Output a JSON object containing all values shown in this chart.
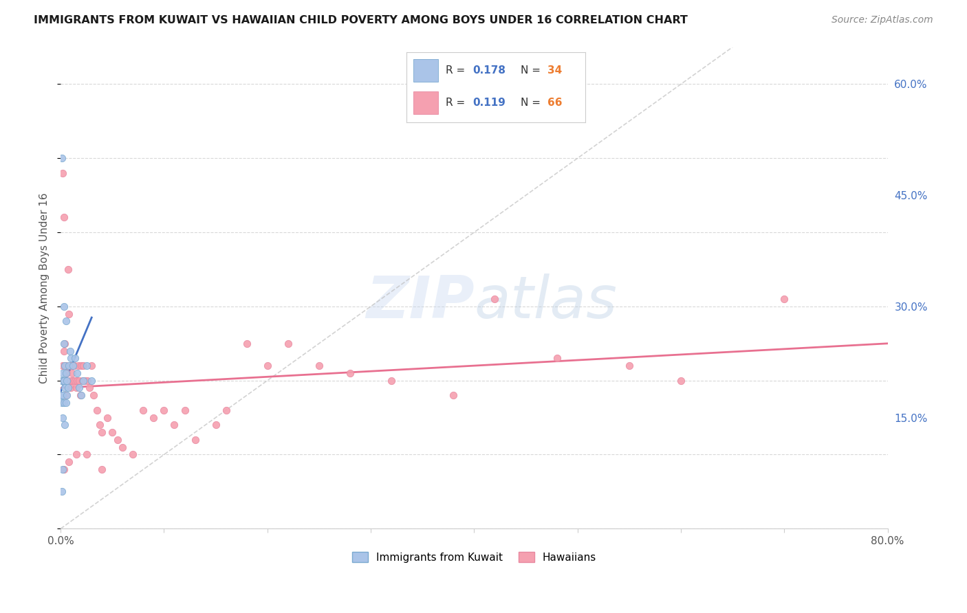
{
  "title": "IMMIGRANTS FROM KUWAIT VS HAWAIIAN CHILD POVERTY AMONG BOYS UNDER 16 CORRELATION CHART",
  "source": "Source: ZipAtlas.com",
  "ylabel": "Child Poverty Among Boys Under 16",
  "xlim": [
    0.0,
    0.8
  ],
  "ylim": [
    0.0,
    0.65
  ],
  "xticks": [
    0.0,
    0.1,
    0.2,
    0.3,
    0.4,
    0.5,
    0.6,
    0.7,
    0.8
  ],
  "xticklabels": [
    "0.0%",
    "",
    "",
    "",
    "",
    "",
    "",
    "",
    "80.0%"
  ],
  "yticks": [
    0.0,
    0.15,
    0.3,
    0.45,
    0.6
  ],
  "yticklabels_right": [
    "",
    "15.0%",
    "30.0%",
    "45.0%",
    "60.0%"
  ],
  "background_color": "#ffffff",
  "grid_color": "#d8d8d8",
  "blue_color": "#aac4e8",
  "pink_color": "#f5a0b0",
  "blue_line_color": "#4472c4",
  "pink_line_color": "#e87090",
  "ref_line_color": "#c0c0c0",
  "R_blue": 0.178,
  "N_blue": 34,
  "R_pink": 0.119,
  "N_pink": 66,
  "legend_R_color": "#4472c4",
  "legend_N_color": "#ed7d31",
  "blue_scatter_x": [
    0.001,
    0.001,
    0.001,
    0.001,
    0.002,
    0.002,
    0.002,
    0.002,
    0.002,
    0.003,
    0.003,
    0.003,
    0.003,
    0.004,
    0.004,
    0.004,
    0.005,
    0.005,
    0.005,
    0.006,
    0.006,
    0.007,
    0.008,
    0.009,
    0.01,
    0.012,
    0.014,
    0.016,
    0.018,
    0.02,
    0.022,
    0.025,
    0.03,
    0.001
  ],
  "blue_scatter_y": [
    0.2,
    0.18,
    0.17,
    0.05,
    0.21,
    0.2,
    0.18,
    0.15,
    0.08,
    0.3,
    0.25,
    0.2,
    0.17,
    0.22,
    0.19,
    0.14,
    0.28,
    0.21,
    0.17,
    0.2,
    0.18,
    0.19,
    0.22,
    0.24,
    0.23,
    0.22,
    0.23,
    0.21,
    0.19,
    0.18,
    0.2,
    0.22,
    0.2,
    0.5
  ],
  "pink_scatter_x": [
    0.001,
    0.002,
    0.002,
    0.003,
    0.003,
    0.003,
    0.004,
    0.004,
    0.005,
    0.005,
    0.006,
    0.007,
    0.008,
    0.009,
    0.01,
    0.01,
    0.011,
    0.012,
    0.013,
    0.014,
    0.015,
    0.016,
    0.017,
    0.018,
    0.019,
    0.02,
    0.021,
    0.022,
    0.024,
    0.026,
    0.028,
    0.03,
    0.032,
    0.035,
    0.038,
    0.04,
    0.045,
    0.05,
    0.055,
    0.06,
    0.07,
    0.08,
    0.09,
    0.1,
    0.11,
    0.12,
    0.13,
    0.15,
    0.16,
    0.18,
    0.2,
    0.22,
    0.25,
    0.28,
    0.32,
    0.38,
    0.42,
    0.48,
    0.55,
    0.6,
    0.003,
    0.008,
    0.015,
    0.025,
    0.04,
    0.7
  ],
  "pink_scatter_y": [
    0.2,
    0.48,
    0.22,
    0.42,
    0.24,
    0.2,
    0.25,
    0.22,
    0.22,
    0.18,
    0.21,
    0.35,
    0.29,
    0.2,
    0.22,
    0.19,
    0.21,
    0.2,
    0.22,
    0.2,
    0.19,
    0.2,
    0.22,
    0.2,
    0.18,
    0.22,
    0.2,
    0.22,
    0.2,
    0.2,
    0.19,
    0.22,
    0.18,
    0.16,
    0.14,
    0.13,
    0.15,
    0.13,
    0.12,
    0.11,
    0.1,
    0.16,
    0.15,
    0.16,
    0.14,
    0.16,
    0.12,
    0.14,
    0.16,
    0.25,
    0.22,
    0.25,
    0.22,
    0.21,
    0.2,
    0.18,
    0.31,
    0.23,
    0.22,
    0.2,
    0.08,
    0.09,
    0.1,
    0.1,
    0.08,
    0.31
  ],
  "blue_trendline_x": [
    0.0,
    0.03
  ],
  "blue_trendline_y": [
    0.185,
    0.285
  ],
  "pink_trendline_x": [
    0.0,
    0.8
  ],
  "pink_trendline_y": [
    0.19,
    0.25
  ],
  "ref_line_x": [
    0.0,
    0.65
  ],
  "ref_line_y": [
    0.0,
    0.65
  ]
}
